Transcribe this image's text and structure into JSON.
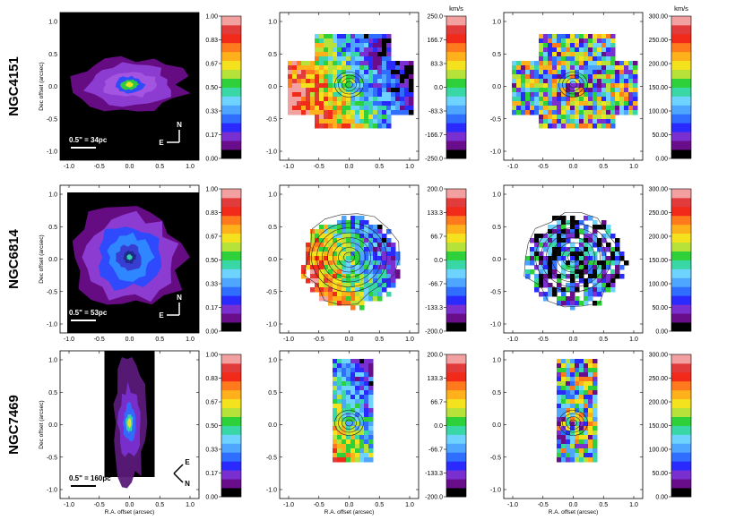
{
  "figure": {
    "rows": [
      {
        "galaxy": "NGC4151",
        "scale_label": "0.5\" = 34pc",
        "compass": {
          "north": "N",
          "east": "E",
          "rotated": false
        },
        "flux_cbar": [
          "1.00",
          "0.83",
          "0.67",
          "0.50",
          "0.33",
          "0.17",
          "0.00"
        ],
        "vel_unit": "km/s",
        "vel_cbar": [
          "250.0",
          "166.7",
          "83.3",
          "0.0",
          "-83.3",
          "-166.7",
          "-250.0"
        ],
        "disp_unit": "km/s",
        "disp_cbar": [
          "300.00",
          "250.00",
          "200.00",
          "150.00",
          "100.00",
          "50.00",
          "0.00"
        ],
        "show_ylabel": true,
        "show_xlabel": false
      },
      {
        "galaxy": "NGC6814",
        "scale_label": "0.5\" = 53pc",
        "compass": {
          "north": "N",
          "east": "E",
          "rotated": false
        },
        "flux_cbar": [
          "1.00",
          "0.83",
          "0.67",
          "0.50",
          "0.33",
          "0.17",
          "0.00"
        ],
        "vel_unit": "",
        "vel_cbar": [
          "200.0",
          "133.3",
          "66.7",
          "0.0",
          "-66.7",
          "-133.3",
          "-200.0"
        ],
        "disp_unit": "",
        "disp_cbar": [
          "300.00",
          "250.00",
          "200.00",
          "150.00",
          "100.00",
          "50.00",
          "0.00"
        ],
        "show_ylabel": true,
        "show_xlabel": false
      },
      {
        "galaxy": "NGC7469",
        "scale_label": "0.5\" = 160pc",
        "compass": {
          "north": "N",
          "east": "E",
          "rotated": true
        },
        "flux_cbar": [
          "1.00",
          "0.83",
          "0.67",
          "0.50",
          "0.33",
          "0.17",
          "0.00"
        ],
        "vel_unit": "",
        "vel_cbar": [
          "200.0",
          "133.3",
          "66.7",
          "0.0",
          "-66.7",
          "-133.3",
          "-200.0"
        ],
        "disp_unit": "",
        "disp_cbar": [
          "300.00",
          "250.00",
          "200.00",
          "150.00",
          "100.00",
          "50.00",
          "0.00"
        ],
        "show_ylabel": true,
        "show_xlabel": true
      }
    ],
    "x_ticks": [
      "-1.0",
      "-0.5",
      "0.0",
      "0.5",
      "1.0"
    ],
    "y_ticks": [
      "1.0",
      "0.5",
      "0.0",
      "-0.5",
      "-1.0"
    ],
    "y_axis_label": "Dec offset (arcsec)",
    "x_axis_label": "R.A. offset (arcsec)",
    "colormap": [
      "#000000",
      "#6a0d8a",
      "#7a2fd0",
      "#2a2aff",
      "#2f6eff",
      "#4fa6ff",
      "#6fd3ff",
      "#39d6a6",
      "#2fd13a",
      "#b6e23a",
      "#f4e21f",
      "#ffb11c",
      "#ff7a1c",
      "#f22a1a",
      "#e23b3b",
      "#f3a0a0"
    ]
  }
}
